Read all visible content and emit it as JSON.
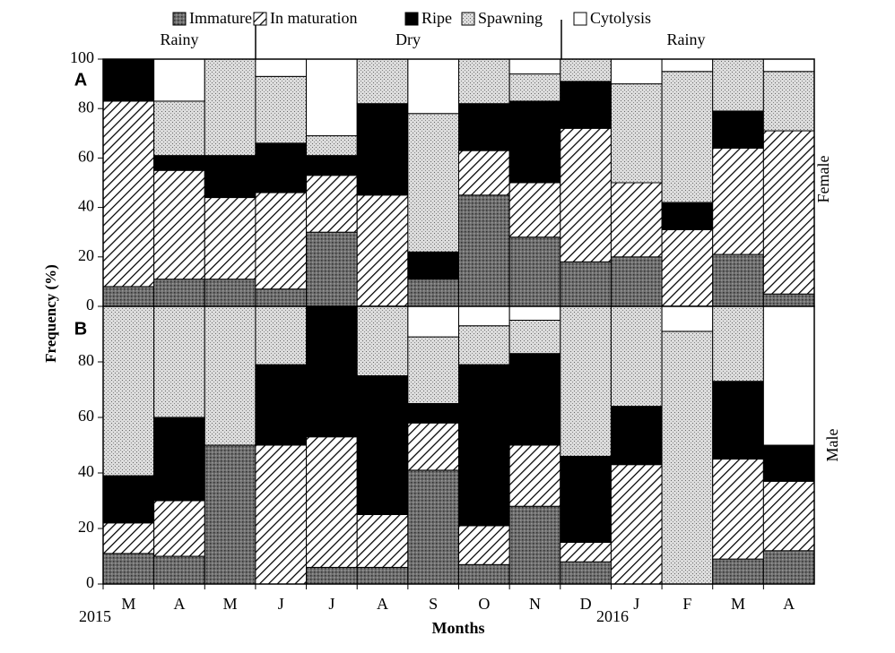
{
  "figure": {
    "y_label": "Frequency (%)",
    "x_label": "Months",
    "seasons": [
      "Rainy",
      "Dry",
      "Rainy"
    ],
    "years": [
      "2015",
      "2016"
    ]
  },
  "chart_data": [
    {
      "type": "bar",
      "stacked": true,
      "panel": "A",
      "side_label": "Female",
      "categories": [
        "M",
        "A",
        "M",
        "J",
        "J",
        "A",
        "S",
        "O",
        "N",
        "D",
        "J",
        "F",
        "M",
        "A"
      ],
      "series": [
        {
          "name": "Immature",
          "color": "#6e6e6e",
          "values": [
            8,
            11,
            11,
            7,
            30,
            0,
            11,
            45,
            28,
            18,
            20,
            0,
            21,
            5
          ]
        },
        {
          "name": "In maturation",
          "color": "#ffffff",
          "values": [
            75,
            44,
            33,
            39,
            23,
            45,
            0,
            18,
            22,
            54,
            30,
            31,
            43,
            66
          ]
        },
        {
          "name": "Ripe",
          "color": "#000000",
          "values": [
            17,
            6,
            17,
            20,
            8,
            37,
            11,
            19,
            33,
            19,
            0,
            11,
            15,
            0
          ]
        },
        {
          "name": "Spawning",
          "color": "#dcdcdc",
          "values": [
            0,
            22,
            39,
            27,
            8,
            18,
            56,
            18,
            11,
            9,
            40,
            53,
            21,
            24
          ]
        },
        {
          "name": "Cytolysis",
          "color": "#ffffff",
          "values": [
            0,
            17,
            0,
            7,
            31,
            0,
            22,
            0,
            6,
            0,
            10,
            5,
            0,
            5
          ]
        }
      ],
      "ylim": [
        0,
        100
      ],
      "yticks": [
        0,
        20,
        40,
        60,
        80,
        100
      ]
    },
    {
      "type": "bar",
      "stacked": true,
      "panel": "B",
      "side_label": "Male",
      "categories": [
        "M",
        "A",
        "M",
        "J",
        "J",
        "A",
        "S",
        "O",
        "N",
        "D",
        "J",
        "F",
        "M",
        "A"
      ],
      "series": [
        {
          "color": "#6e6e6e",
          "values": [
            11,
            10,
            50,
            0,
            6,
            6,
            41,
            7,
            28,
            8,
            0,
            0,
            9,
            12
          ]
        },
        {
          "color": "#ffffff",
          "values": [
            11,
            20,
            0,
            50,
            47,
            19,
            17,
            14,
            22,
            7,
            43,
            0,
            36,
            25
          ]
        },
        {
          "color": "#000000",
          "values": [
            17,
            30,
            0,
            29,
            47,
            50,
            7,
            58,
            33,
            31,
            21,
            0,
            28,
            13
          ]
        },
        {
          "color": "#dcdcdc",
          "values": [
            61,
            40,
            50,
            21,
            0,
            25,
            24,
            14,
            12,
            54,
            36,
            91,
            27,
            0
          ]
        },
        {
          "color": "#ffffff",
          "values": [
            0,
            0,
            0,
            0,
            0,
            0,
            11,
            7,
            5,
            0,
            0,
            9,
            0,
            50
          ]
        }
      ],
      "ylim": [
        0,
        100
      ],
      "yticks": [
        0,
        20,
        40,
        60,
        80
      ]
    }
  ]
}
